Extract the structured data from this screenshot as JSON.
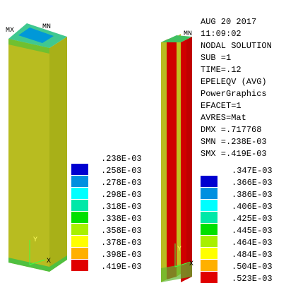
{
  "header": {
    "date": "AUG 20 2017",
    "time": "11:09:02",
    "lines": [
      "NODAL SOLUTION",
      "SUB =1",
      "TIME=.12",
      "EPELEQV  (AVG)",
      "PowerGraphics",
      "EFACET=1",
      "AVRES=Mat",
      "DMX =.717768",
      "SMN =.238E-03",
      "SMX =.419E-03"
    ]
  },
  "colors": [
    "#0000d0",
    "#0090e0",
    "#00ffff",
    "#00e8a8",
    "#00e000",
    "#a8f000",
    "#ffff00",
    "#ffb000",
    "#e00000"
  ],
  "legend_left": [
    ".238E-03",
    ".258E-03",
    ".278E-03",
    ".298E-03",
    ".318E-03",
    ".338E-03",
    ".358E-03",
    ".378E-03",
    ".398E-03",
    ".419E-03"
  ],
  "legend_right": [
    ".347E-03",
    ".366E-03",
    ".386E-03",
    ".406E-03",
    ".425E-03",
    ".445E-03",
    ".464E-03",
    ".484E-03",
    ".504E-03",
    ".523E-03"
  ],
  "markers": {
    "left_mx": "MX",
    "left_mn": "MN",
    "right_mn": "MN",
    "left_y": "Y",
    "left_x": "X",
    "right_y": "Y",
    "right_x": "X"
  }
}
